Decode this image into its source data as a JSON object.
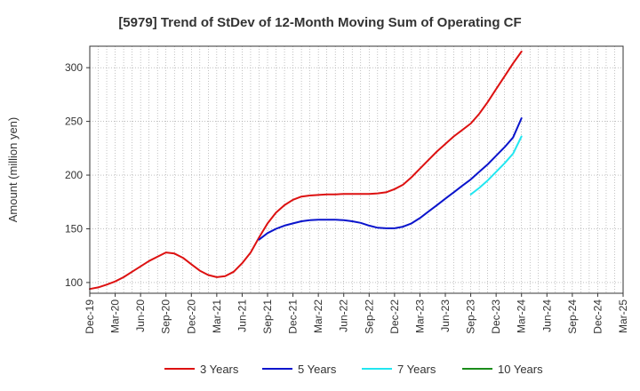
{
  "chart_data": {
    "type": "line",
    "title": "[5979]  Trend of StDev of 12-Month Moving Sum of Operating CF",
    "ylabel": "Amount (million yen)",
    "xlabel": "",
    "ylim": [
      90,
      320
    ],
    "yticks": [
      100,
      150,
      200,
      250,
      300
    ],
    "x_start": "Dec-19",
    "x_end": "Mar-25",
    "x_tick_labels": [
      "Dec-19",
      "Mar-20",
      "Jun-20",
      "Sep-20",
      "Dec-20",
      "Mar-21",
      "Jun-21",
      "Sep-21",
      "Dec-21",
      "Mar-22",
      "Jun-22",
      "Sep-22",
      "Dec-22",
      "Mar-23",
      "Jun-23",
      "Sep-23",
      "Dec-23",
      "Mar-24",
      "Jun-24",
      "Sep-24",
      "Dec-24",
      "Mar-25"
    ],
    "grid": true,
    "legend_position": "bottom",
    "series": [
      {
        "name": "3 Years",
        "color": "#dd1111",
        "x": [
          "Dec-19",
          "Jan-20",
          "Feb-20",
          "Mar-20",
          "Apr-20",
          "May-20",
          "Jun-20",
          "Jul-20",
          "Aug-20",
          "Sep-20",
          "Oct-20",
          "Nov-20",
          "Dec-20",
          "Jan-21",
          "Feb-21",
          "Mar-21",
          "Apr-21",
          "May-21",
          "Jun-21",
          "Jul-21",
          "Aug-21",
          "Sep-21",
          "Oct-21",
          "Nov-21",
          "Dec-21",
          "Jan-22",
          "Feb-22",
          "Mar-22",
          "Apr-22",
          "May-22",
          "Jun-22",
          "Jul-22",
          "Aug-22",
          "Sep-22",
          "Oct-22",
          "Nov-22",
          "Dec-22",
          "Jan-23",
          "Feb-23",
          "Mar-23",
          "Apr-23",
          "May-23",
          "Jun-23",
          "Jul-23",
          "Aug-23",
          "Sep-23",
          "Oct-23",
          "Nov-23",
          "Dec-23",
          "Jan-24",
          "Feb-24",
          "Mar-24"
        ],
        "values": [
          94,
          95.5,
          98,
          101,
          105,
          110,
          115,
          120,
          124,
          128,
          127,
          123,
          117,
          111,
          107,
          105,
          106,
          110,
          118,
          128,
          142,
          155,
          165,
          172,
          177,
          180,
          181,
          181.5,
          182,
          182,
          182.5,
          182.5,
          182.5,
          182.5,
          183,
          184,
          187,
          191,
          198,
          206,
          214,
          222,
          229,
          236,
          242,
          248,
          257,
          268,
          280,
          292,
          304,
          315
        ]
      },
      {
        "name": "5 Years",
        "color": "#0a14cc",
        "x": [
          "Aug-21",
          "Sep-21",
          "Oct-21",
          "Nov-21",
          "Dec-21",
          "Jan-22",
          "Feb-22",
          "Mar-22",
          "Apr-22",
          "May-22",
          "Jun-22",
          "Jul-22",
          "Aug-22",
          "Sep-22",
          "Oct-22",
          "Nov-22",
          "Dec-22",
          "Jan-23",
          "Feb-23",
          "Mar-23",
          "Apr-23",
          "May-23",
          "Jun-23",
          "Jul-23",
          "Aug-23",
          "Sep-23",
          "Oct-23",
          "Nov-23",
          "Dec-23",
          "Jan-24",
          "Feb-24",
          "Mar-24"
        ],
        "values": [
          140,
          146,
          150,
          153,
          155,
          157,
          158,
          158.5,
          158.5,
          158.5,
          158,
          157,
          155.5,
          153,
          151,
          150.5,
          150.5,
          152,
          155,
          160,
          166,
          172,
          178,
          184,
          190,
          196,
          203,
          210,
          218,
          226,
          235,
          253
        ]
      },
      {
        "name": "7 Years",
        "color": "#22e6f0",
        "x": [
          "Sep-23",
          "Oct-23",
          "Nov-23",
          "Dec-23",
          "Jan-24",
          "Feb-24",
          "Mar-24"
        ],
        "values": [
          182,
          188,
          195,
          203,
          211,
          220,
          236
        ]
      },
      {
        "name": "10 Years",
        "color": "#1a8c1a",
        "x": [],
        "values": []
      }
    ]
  }
}
